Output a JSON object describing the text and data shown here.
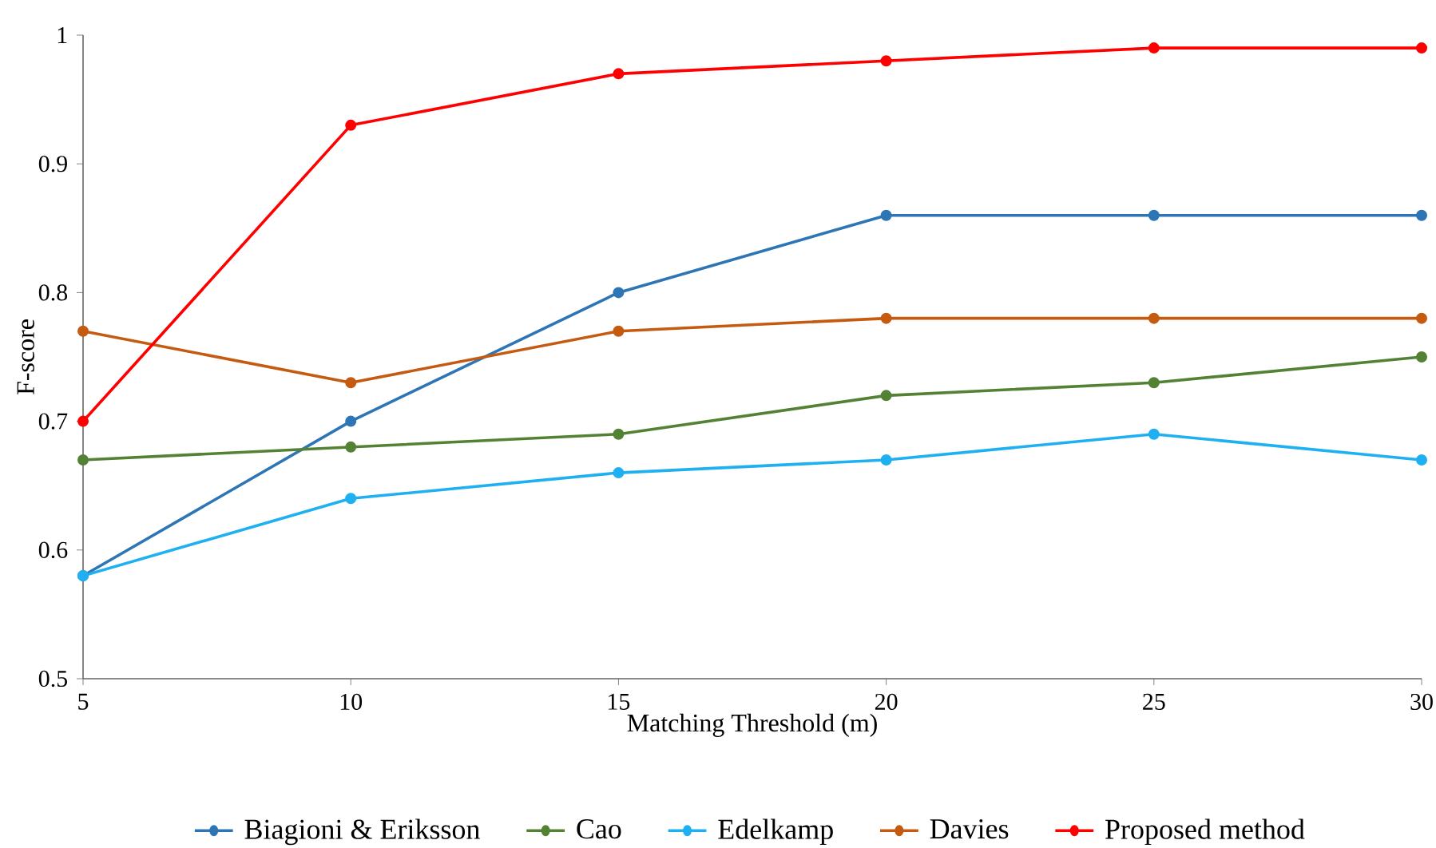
{
  "chart_data": {
    "type": "line",
    "xlabel": "Matching Threshold (m)",
    "ylabel": "F-score",
    "x": [
      5,
      10,
      15,
      20,
      25,
      30
    ],
    "series": [
      {
        "name": "Biagioni & Eriksson",
        "color": "#2e75b6",
        "values": [
          0.58,
          0.7,
          0.8,
          0.86,
          0.86,
          0.86
        ]
      },
      {
        "name": "Cao",
        "color": "#548235",
        "values": [
          0.67,
          0.68,
          0.69,
          0.72,
          0.73,
          0.75
        ]
      },
      {
        "name": "Edelkamp",
        "color": "#1eb0f0",
        "values": [
          0.58,
          0.64,
          0.66,
          0.67,
          0.69,
          0.67
        ]
      },
      {
        "name": "Davies",
        "color": "#c55a11",
        "values": [
          0.77,
          0.73,
          0.77,
          0.78,
          0.78,
          0.78
        ]
      },
      {
        "name": "Proposed method",
        "color": "#ff0000",
        "values": [
          0.7,
          0.93,
          0.97,
          0.98,
          0.99,
          0.99
        ]
      }
    ],
    "xlim": [
      5,
      30
    ],
    "xticks": [
      5,
      10,
      15,
      20,
      25,
      30
    ],
    "ylim": [
      0.5,
      1
    ],
    "yticks": [
      0.5,
      0.6,
      0.7,
      0.8,
      0.9,
      1
    ],
    "grid": false,
    "legend": "bottom",
    "marker": "circle",
    "line_style": "solid"
  }
}
